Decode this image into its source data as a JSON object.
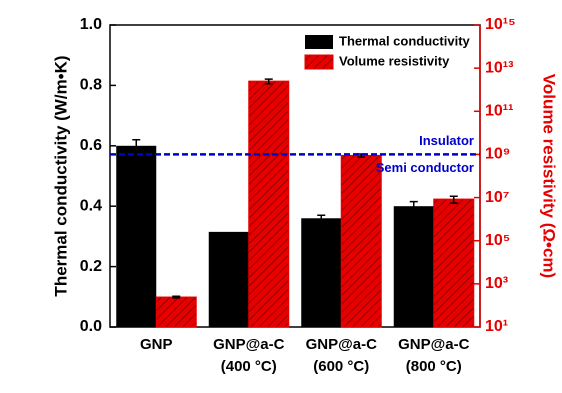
{
  "chart_data": {
    "type": "bar",
    "categories": [
      [
        "GNP"
      ],
      [
        "GNP@a-C",
        "(400 °C)"
      ],
      [
        "GNP@a-C",
        "(600 °C)"
      ],
      [
        "GNP@a-C",
        "(800 °C)"
      ]
    ],
    "series": [
      {
        "name": "Thermal conductivity",
        "color": "#000000",
        "values": [
          0.6,
          0.315,
          0.36,
          0.4
        ],
        "errors": [
          0.02,
          0,
          0.01,
          0.015
        ]
      },
      {
        "name": "Volume resistivity",
        "color": "#e60000",
        "axis": "y2",
        "hatch": true,
        "values": [
          245,
          2500000000000.0,
          900000000.0,
          8500000.0
        ],
        "errors": [
          20,
          600000000000.0,
          150000000.0,
          3000000.0
        ]
      }
    ],
    "ylabel": "Thermal conductivity (W/m•K)",
    "y2label": "Volume resistivity (Ω•cm)",
    "ylim": [
      0,
      1.0
    ],
    "yticks": [
      {
        "value": 0,
        "label": "0.0"
      },
      0.2,
      0.4,
      0.6,
      0.8,
      {
        "value": 1,
        "label": "1.0"
      }
    ],
    "y2lim": [
      10,
      1000000000000000.0
    ],
    "y2scale": "log",
    "y2color": "#e60000",
    "y2ticks": [
      {
        "value": 10,
        "label": "10¹"
      },
      {
        "value": 1000,
        "label": "10³"
      },
      {
        "value": 100000,
        "label": "10⁵"
      },
      {
        "value": 10000000.0,
        "label": "10⁷"
      },
      {
        "value": 1000000000.0,
        "label": "10⁹"
      },
      {
        "value": 100000000000.0,
        "label": "10¹¹"
      },
      {
        "value": 10000000000000.0,
        "label": "10¹³"
      },
      {
        "value": 1000000000000000.0,
        "label": "10¹⁵"
      }
    ],
    "reference_line": {
      "value": 1000000000.0,
      "axis": "y2",
      "color": "#0000cc",
      "labels": [
        "Insulator",
        "Semi conductor"
      ]
    },
    "legend": "upper right"
  }
}
